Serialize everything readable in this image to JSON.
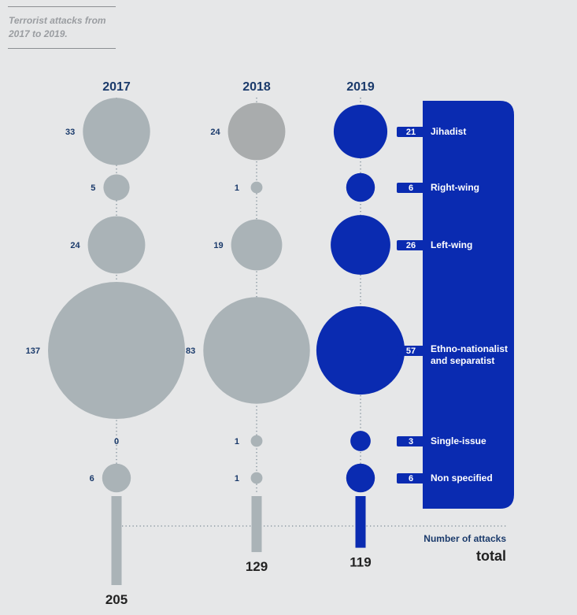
{
  "chart_data": {
    "type": "bubble",
    "title": "Terrorist attacks from 2017 to 2019.",
    "years": [
      "2017",
      "2018",
      "2019"
    ],
    "categories": [
      "Jihadist",
      "Right-wing",
      "Left-wing",
      "Ethno-nationalist and separatist",
      "Single-issue",
      "Non specified"
    ],
    "values": {
      "2017": [
        33,
        5,
        24,
        137,
        0,
        6
      ],
      "2018": [
        24,
        1,
        19,
        83,
        1,
        1
      ],
      "2019": [
        21,
        6,
        26,
        57,
        3,
        6
      ]
    },
    "totals": [
      205,
      129,
      119
    ],
    "totals_label": "Number of attacks",
    "totals_sublabel": "total",
    "highlight_year": "2019"
  },
  "colors": {
    "background": "#e6e7e8",
    "grey": "#aab3b7",
    "grey_2018_jihadist": "#a9acad",
    "blue": "#0a2bb1",
    "navy_text": "#1a3a6b",
    "dark_text": "#222222"
  }
}
